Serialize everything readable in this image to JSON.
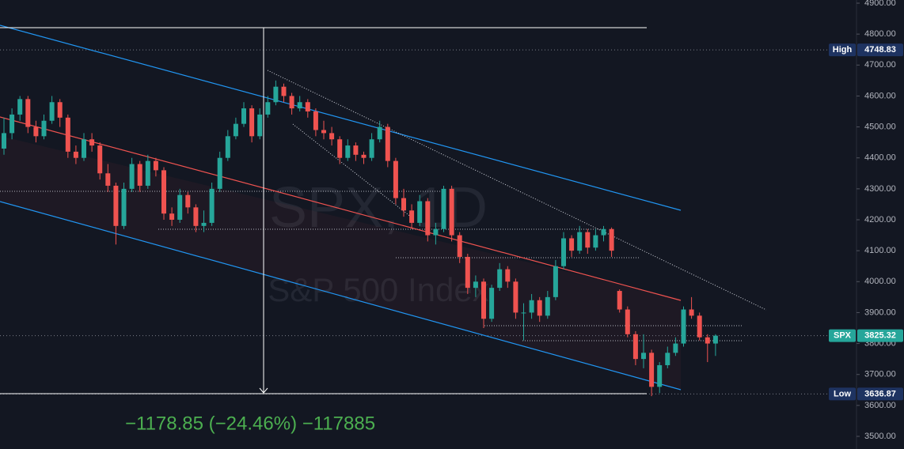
{
  "chart_data": {
    "type": "candlestick",
    "symbol": "SPX, 1D",
    "description": "S&P 500 Index",
    "measure_label": "−1178.85 (−24.46%) −117885",
    "up_color": "#26a69a",
    "down_color": "#ef5350",
    "ylim": [
      3500,
      4900
    ],
    "yticks": [
      {
        "value": 3500,
        "label": "3500.00"
      },
      {
        "value": 3600,
        "label": "3600.00"
      },
      {
        "value": 3700,
        "label": "3700.00"
      },
      {
        "value": 3800,
        "label": "3800.00"
      },
      {
        "value": 3900,
        "label": "3900.00"
      },
      {
        "value": 4000,
        "label": "4000.00"
      },
      {
        "value": 4100,
        "label": "4100.00"
      },
      {
        "value": 4200,
        "label": "4200.00"
      },
      {
        "value": 4300,
        "label": "4300.00"
      },
      {
        "value": 4400,
        "label": "4400.00"
      },
      {
        "value": 4500,
        "label": "4500.00"
      },
      {
        "value": 4600,
        "label": "4600.00"
      },
      {
        "value": 4700,
        "label": "4700.00"
      },
      {
        "value": 4800,
        "label": "4800.00"
      },
      {
        "value": 4900,
        "label": "4900.00"
      }
    ],
    "high": {
      "name": "High",
      "value": 4748.83,
      "label": "4748.83"
    },
    "low": {
      "name": "Low",
      "value": 3636.87,
      "label": "3636.87"
    },
    "last": {
      "name": "SPX",
      "value": 3825.32,
      "label": "3825.32"
    },
    "candles": [
      [
        4430,
        4530,
        4410,
        4480
      ],
      [
        4480,
        4560,
        4460,
        4540
      ],
      [
        4540,
        4600,
        4520,
        4590
      ],
      [
        4590,
        4600,
        4480,
        4500
      ],
      [
        4500,
        4520,
        4450,
        4470
      ],
      [
        4470,
        4540,
        4460,
        4520
      ],
      [
        4520,
        4600,
        4510,
        4580
      ],
      [
        4580,
        4590,
        4500,
        4530
      ],
      [
        4530,
        4540,
        4400,
        4420
      ],
      [
        4420,
        4440,
        4380,
        4400
      ],
      [
        4400,
        4480,
        4390,
        4460
      ],
      [
        4460,
        4480,
        4420,
        4440
      ],
      [
        4440,
        4450,
        4330,
        4350
      ],
      [
        4350,
        4380,
        4290,
        4310
      ],
      [
        4310,
        4320,
        4120,
        4180
      ],
      [
        4180,
        4320,
        4170,
        4300
      ],
      [
        4300,
        4400,
        4290,
        4380
      ],
      [
        4380,
        4390,
        4290,
        4310
      ],
      [
        4310,
        4410,
        4300,
        4390
      ],
      [
        4390,
        4400,
        4340,
        4360
      ],
      [
        4360,
        4370,
        4200,
        4220
      ],
      [
        4220,
        4240,
        4180,
        4200
      ],
      [
        4200,
        4300,
        4190,
        4280
      ],
      [
        4280,
        4290,
        4220,
        4240
      ],
      [
        4240,
        4250,
        4160,
        4180
      ],
      [
        4180,
        4230,
        4160,
        4190
      ],
      [
        4190,
        4320,
        4180,
        4300
      ],
      [
        4300,
        4420,
        4290,
        4400
      ],
      [
        4400,
        4490,
        4390,
        4470
      ],
      [
        4470,
        4530,
        4460,
        4510
      ],
      [
        4510,
        4580,
        4500,
        4560
      ],
      [
        4560,
        4570,
        4450,
        4470
      ],
      [
        4470,
        4560,
        4460,
        4540
      ],
      [
        4540,
        4600,
        4530,
        4580
      ],
      [
        4580,
        4650,
        4570,
        4630
      ],
      [
        4630,
        4640,
        4580,
        4600
      ],
      [
        4600,
        4610,
        4540,
        4560
      ],
      [
        4560,
        4600,
        4550,
        4580
      ],
      [
        4580,
        4590,
        4530,
        4550
      ],
      [
        4550,
        4560,
        4470,
        4490
      ],
      [
        4490,
        4520,
        4460,
        4480
      ],
      [
        4480,
        4500,
        4440,
        4460
      ],
      [
        4460,
        4470,
        4380,
        4400
      ],
      [
        4400,
        4460,
        4390,
        4440
      ],
      [
        4440,
        4450,
        4390,
        4410
      ],
      [
        4410,
        4420,
        4380,
        4400
      ],
      [
        4400,
        4480,
        4390,
        4460
      ],
      [
        4460,
        4520,
        4450,
        4500
      ],
      [
        4500,
        4510,
        4370,
        4390
      ],
      [
        4390,
        4400,
        4250,
        4270
      ],
      [
        4270,
        4300,
        4210,
        4230
      ],
      [
        4230,
        4250,
        4170,
        4190
      ],
      [
        4190,
        4280,
        4180,
        4260
      ],
      [
        4260,
        4270,
        4130,
        4150
      ],
      [
        4150,
        4190,
        4120,
        4170
      ],
      [
        4170,
        4310,
        4160,
        4300
      ],
      [
        4300,
        4310,
        4130,
        4150
      ],
      [
        4150,
        4160,
        4060,
        4080
      ],
      [
        4080,
        4090,
        3960,
        3980
      ],
      [
        3980,
        4020,
        3950,
        4000
      ],
      [
        4000,
        4010,
        3850,
        3880
      ],
      [
        3880,
        3990,
        3870,
        3980
      ],
      [
        3980,
        4060,
        3970,
        4040
      ],
      [
        4040,
        4050,
        3980,
        4000
      ],
      [
        4000,
        4010,
        3880,
        3900
      ],
      [
        3900,
        3930,
        3810,
        3900
      ],
      [
        3900,
        3960,
        3880,
        3940
      ],
      [
        3940,
        3950,
        3870,
        3890
      ],
      [
        3890,
        3970,
        3880,
        3950
      ],
      [
        3950,
        4070,
        3940,
        4050
      ],
      [
        4050,
        4160,
        4040,
        4140
      ],
      [
        4140,
        4150,
        4080,
        4100
      ],
      [
        4100,
        4180,
        4090,
        4160
      ],
      [
        4160,
        4170,
        4090,
        4110
      ],
      [
        4110,
        4170,
        4100,
        4150
      ],
      [
        4150,
        4180,
        4130,
        4170
      ],
      [
        4170,
        4175,
        4080,
        4100
      ],
      [
        3970,
        3975,
        3900,
        3910
      ],
      [
        3910,
        3920,
        3820,
        3830
      ],
      [
        3830,
        3840,
        3730,
        3750
      ],
      [
        3750,
        3830,
        3720,
        3770
      ],
      [
        3770,
        3780,
        3630,
        3660
      ],
      [
        3660,
        3740,
        3640,
        3730
      ],
      [
        3730,
        3790,
        3720,
        3770
      ],
      [
        3770,
        3820,
        3760,
        3800
      ],
      [
        3800,
        3920,
        3790,
        3910
      ],
      [
        3910,
        3950,
        3880,
        3890
      ],
      [
        3890,
        3900,
        3810,
        3820
      ],
      [
        3820,
        3830,
        3740,
        3800
      ],
      [
        3800,
        3830,
        3760,
        3825.32
      ]
    ]
  }
}
